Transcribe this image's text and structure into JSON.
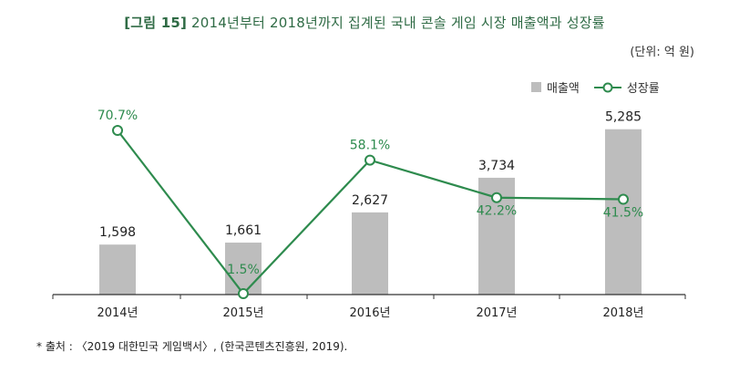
{
  "title": {
    "fig_label": "[그림 15]",
    "text": "2014년부터 2018년까지 집계된 국내 콘솔 게임 시장 매출액과 성장률"
  },
  "unit": "(단위: 억 원)",
  "legend": {
    "bar_label": "매출액",
    "line_label": "성장률"
  },
  "footnote": "* 출처 : 〈2019 대한민국 게임백서〉, (한국콘텐츠진흥원, 2019).",
  "colors": {
    "bar": "#bdbdbd",
    "line": "#2e8b4e",
    "growth_text": "#2e8b4e",
    "title": "#2f6b45"
  },
  "chart_data": {
    "type": "bar",
    "categories": [
      "2014년",
      "2015년",
      "2016년",
      "2017년",
      "2018년"
    ],
    "series": [
      {
        "name": "매출액",
        "type": "bar",
        "values": [
          1598,
          1661,
          2627,
          3734,
          5285
        ],
        "labels": [
          "1,598",
          "1,661",
          "2,627",
          "3,734",
          "5,285"
        ]
      },
      {
        "name": "성장률",
        "type": "line",
        "values": [
          70.7,
          1.5,
          58.1,
          42.2,
          41.5
        ],
        "labels": [
          "70.7%",
          "1.5%",
          "58.1%",
          "42.2%",
          "41.5%"
        ]
      }
    ],
    "legend_position": "top-right"
  }
}
